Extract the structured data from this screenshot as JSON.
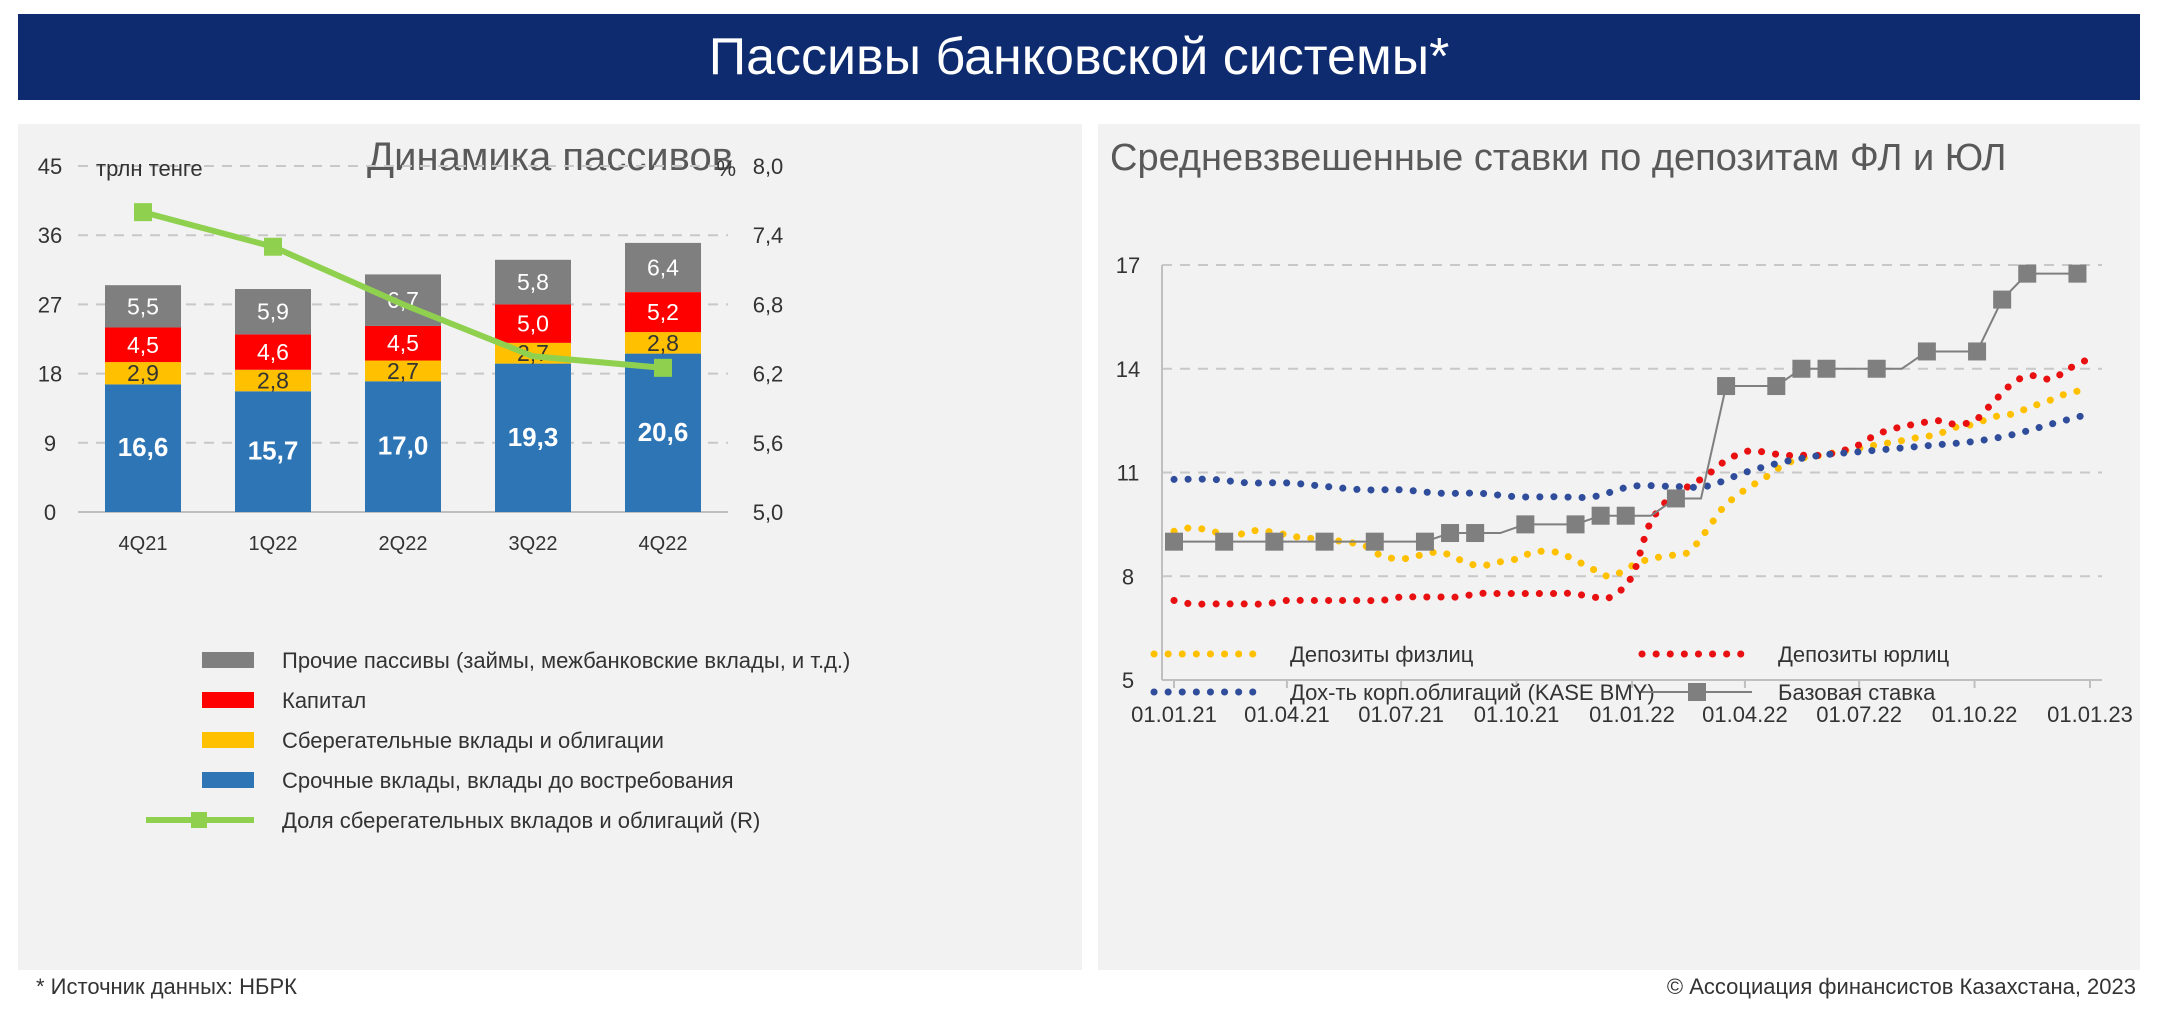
{
  "header": {
    "title": "Пассивы банковской системы*"
  },
  "footer": {
    "source": "* Источник данных: НБРК",
    "copyright": "© Ассоциация финансистов Казахстана, 2023"
  },
  "colors": {
    "header_bg": "#0e2b6f",
    "other": "#7f7f7f",
    "capital": "#ff0000",
    "savings": "#ffc000",
    "deposits": "#2e75b6",
    "share_line": "#8fd14f",
    "individuals": "#ffc000",
    "corporates": "#e81010",
    "kase": "#2f4d9a",
    "base_rate": "#7f7f7f"
  },
  "chart_data": [
    {
      "id": "liabilities",
      "type": "bar",
      "stacked": true,
      "title": "Динамика пассивов",
      "ylabel_left": "трлн тенге",
      "ylabel_right": "%",
      "categories": [
        "4Q21",
        "1Q22",
        "2Q22",
        "3Q22",
        "4Q22"
      ],
      "ylim": [
        0,
        45
      ],
      "yticks": [
        "0",
        "9",
        "18",
        "27",
        "36",
        "45"
      ],
      "y2lim": [
        5.0,
        8.0
      ],
      "y2ticks": [
        "5,0",
        "5,6",
        "6,2",
        "6,8",
        "7,4",
        "8,0"
      ],
      "series": [
        {
          "name": "Срочные вклады, вклады до востребования",
          "key": "deposits",
          "values": [
            16.6,
            15.7,
            17.0,
            19.3,
            20.6
          ],
          "labels": [
            "16,6",
            "15,7",
            "17,0",
            "19,3",
            "20,6"
          ]
        },
        {
          "name": "Сберегательные вклады и облигации",
          "key": "savings",
          "values": [
            2.9,
            2.8,
            2.7,
            2.7,
            2.8
          ],
          "labels": [
            "2,9",
            "2,8",
            "2,7",
            "2,7",
            "2,8"
          ]
        },
        {
          "name": "Капитал",
          "key": "capital",
          "values": [
            4.5,
            4.6,
            4.5,
            5.0,
            5.2
          ],
          "labels": [
            "4,5",
            "4,6",
            "4,5",
            "5,0",
            "5,2"
          ]
        },
        {
          "name": "Прочие пассивы (займы, межбанковские вклады, и т.д.)",
          "key": "other",
          "values": [
            5.5,
            5.9,
            6.7,
            5.8,
            6.4
          ],
          "labels": [
            "5,5",
            "5,9",
            "6,7",
            "5,8",
            "6,4"
          ]
        }
      ],
      "line": {
        "name": "Доля сберегательных вкладов и облигаций (R)",
        "key": "share_line",
        "values": [
          7.6,
          7.3,
          6.8,
          6.35,
          6.25
        ]
      },
      "legend_order": [
        "other",
        "capital",
        "savings",
        "deposits",
        "share_line"
      ],
      "legend_position": "bottom",
      "grid": true
    },
    {
      "id": "rates",
      "type": "line",
      "title": "Средневзвешенные ставки по депозитам ФЛ и ЮЛ",
      "ylim": [
        5,
        17
      ],
      "yticks": [
        "5",
        "8",
        "11",
        "14",
        "17"
      ],
      "x_start": "2021-01-01",
      "x_end": "2023-01-01",
      "xticks": [
        "01.01.21",
        "01.04.21",
        "01.07.21",
        "01.10.21",
        "01.01.22",
        "01.04.22",
        "01.07.22",
        "01.10.22",
        "01.01.23"
      ],
      "series": [
        {
          "name": "Депозиты физлиц",
          "key": "individuals",
          "style": "dotted",
          "x": [
            "2021-01-01",
            "2021-01-15",
            "2021-02-01",
            "2021-02-15",
            "2021-03-01",
            "2021-03-15",
            "2021-04-01",
            "2021-04-15",
            "2021-05-01",
            "2021-05-15",
            "2021-06-01",
            "2021-06-15",
            "2021-07-01",
            "2021-07-15",
            "2021-08-01",
            "2021-08-15",
            "2021-09-01",
            "2021-09-15",
            "2021-10-01",
            "2021-10-15",
            "2021-11-01",
            "2021-11-15",
            "2021-12-01",
            "2021-12-15",
            "2022-01-01",
            "2022-01-15",
            "2022-02-01",
            "2022-02-15",
            "2022-03-01",
            "2022-03-15",
            "2022-04-01",
            "2022-04-15",
            "2022-05-01",
            "2022-05-15",
            "2022-06-01",
            "2022-06-15",
            "2022-07-01",
            "2022-07-15",
            "2022-08-01",
            "2022-08-15",
            "2022-09-01",
            "2022-09-15",
            "2022-10-01",
            "2022-10-15",
            "2022-11-01",
            "2022-11-15",
            "2022-12-01",
            "2022-12-15",
            "2023-01-01"
          ],
          "values": [
            9.3,
            9.4,
            9.3,
            9.1,
            9.3,
            9.3,
            9.2,
            9.1,
            9.1,
            9.0,
            8.9,
            8.6,
            8.5,
            8.6,
            8.7,
            8.5,
            8.3,
            8.4,
            8.5,
            8.7,
            8.7,
            8.5,
            8.2,
            8.0,
            8.3,
            8.5,
            8.6,
            8.7,
            9.3,
            10.0,
            10.5,
            10.8,
            11.2,
            11.4,
            11.5,
            11.6,
            11.7,
            11.8,
            11.9,
            12.0,
            12.1,
            12.3,
            12.4,
            12.6,
            12.7,
            12.9,
            13.1,
            13.3,
            13.4
          ]
        },
        {
          "name": "Депозиты юрлиц",
          "key": "corporates",
          "style": "dotted",
          "x": [
            "2021-01-01",
            "2021-01-15",
            "2021-02-01",
            "2021-02-15",
            "2021-03-01",
            "2021-03-15",
            "2021-04-01",
            "2021-04-15",
            "2021-05-01",
            "2021-05-15",
            "2021-06-01",
            "2021-06-15",
            "2021-07-01",
            "2021-07-15",
            "2021-08-01",
            "2021-08-15",
            "2021-09-01",
            "2021-09-15",
            "2021-10-01",
            "2021-10-15",
            "2021-11-01",
            "2021-11-15",
            "2021-12-01",
            "2021-12-15",
            "2022-01-01",
            "2022-01-15",
            "2022-02-01",
            "2022-02-15",
            "2022-03-01",
            "2022-03-15",
            "2022-04-01",
            "2022-04-15",
            "2022-05-01",
            "2022-05-15",
            "2022-06-01",
            "2022-06-15",
            "2022-07-01",
            "2022-07-15",
            "2022-08-01",
            "2022-08-15",
            "2022-09-01",
            "2022-09-15",
            "2022-10-01",
            "2022-10-15",
            "2022-11-01",
            "2022-11-15",
            "2022-12-01",
            "2022-12-15",
            "2023-01-01"
          ],
          "values": [
            7.3,
            7.2,
            7.2,
            7.2,
            7.2,
            7.2,
            7.3,
            7.3,
            7.3,
            7.3,
            7.3,
            7.3,
            7.4,
            7.4,
            7.4,
            7.4,
            7.5,
            7.5,
            7.5,
            7.5,
            7.5,
            7.5,
            7.4,
            7.4,
            8.0,
            9.5,
            10.3,
            10.6,
            10.9,
            11.3,
            11.6,
            11.6,
            11.5,
            11.5,
            11.5,
            11.6,
            11.8,
            12.1,
            12.3,
            12.4,
            12.5,
            12.4,
            12.5,
            13.0,
            13.6,
            13.8,
            13.7,
            14.0,
            14.3
          ]
        },
        {
          "name": "Дох-ть корп.облигаций (KASE BMY)",
          "key": "kase",
          "style": "dotted",
          "x": [
            "2021-01-01",
            "2021-02-01",
            "2021-03-01",
            "2021-04-01",
            "2021-05-01",
            "2021-06-01",
            "2021-07-01",
            "2021-08-01",
            "2021-09-01",
            "2021-10-01",
            "2021-11-01",
            "2021-12-01",
            "2022-01-01",
            "2022-02-01",
            "2022-03-01",
            "2022-04-01",
            "2022-05-01",
            "2022-06-01",
            "2022-07-01",
            "2022-08-01",
            "2022-09-01",
            "2022-10-01",
            "2022-11-01",
            "2022-12-01",
            "2023-01-01"
          ],
          "values": [
            10.8,
            10.8,
            10.7,
            10.7,
            10.6,
            10.5,
            10.5,
            10.4,
            10.4,
            10.3,
            10.3,
            10.3,
            10.6,
            10.6,
            10.6,
            11.0,
            11.3,
            11.5,
            11.6,
            11.7,
            11.8,
            11.9,
            12.1,
            12.4,
            12.7
          ]
        },
        {
          "name": "Базовая ставка",
          "key": "base_rate",
          "style": "step-markers",
          "x": [
            "2021-01-01",
            "2021-01-21",
            "2021-02-10",
            "2021-03-02",
            "2021-03-22",
            "2021-04-11",
            "2021-05-01",
            "2021-05-21",
            "2021-06-10",
            "2021-06-30",
            "2021-07-20",
            "2021-08-09",
            "2021-08-29",
            "2021-09-18",
            "2021-10-08",
            "2021-10-28",
            "2021-11-17",
            "2021-12-07",
            "2021-12-27",
            "2022-01-16",
            "2022-02-05",
            "2022-02-25",
            "2022-03-17",
            "2022-04-06",
            "2022-04-26",
            "2022-05-16",
            "2022-06-05",
            "2022-06-25",
            "2022-07-15",
            "2022-08-04",
            "2022-08-24",
            "2022-09-13",
            "2022-10-03",
            "2022-10-23",
            "2022-11-12",
            "2022-12-02",
            "2022-12-22"
          ],
          "values": [
            9.0,
            9.0,
            9.0,
            9.0,
            9.0,
            9.0,
            9.0,
            9.0,
            9.0,
            9.0,
            9.0,
            9.25,
            9.25,
            9.25,
            9.5,
            9.5,
            9.5,
            9.75,
            9.75,
            9.75,
            10.25,
            10.25,
            13.5,
            13.5,
            13.5,
            14.0,
            14.0,
            14.0,
            14.0,
            14.0,
            14.5,
            14.5,
            14.5,
            16.0,
            16.75,
            16.75,
            16.75
          ],
          "markers": [
            0,
            1,
            2,
            3,
            4,
            5,
            6,
            7,
            8,
            9,
            10,
            11,
            12,
            13,
            14,
            15,
            16,
            17,
            18,
            19,
            20,
            21,
            22,
            23,
            24,
            25,
            26,
            27,
            28,
            29,
            30,
            31,
            32,
            33,
            34,
            35,
            36
          ]
        }
      ],
      "legend_position": "bottom",
      "grid": true
    }
  ]
}
